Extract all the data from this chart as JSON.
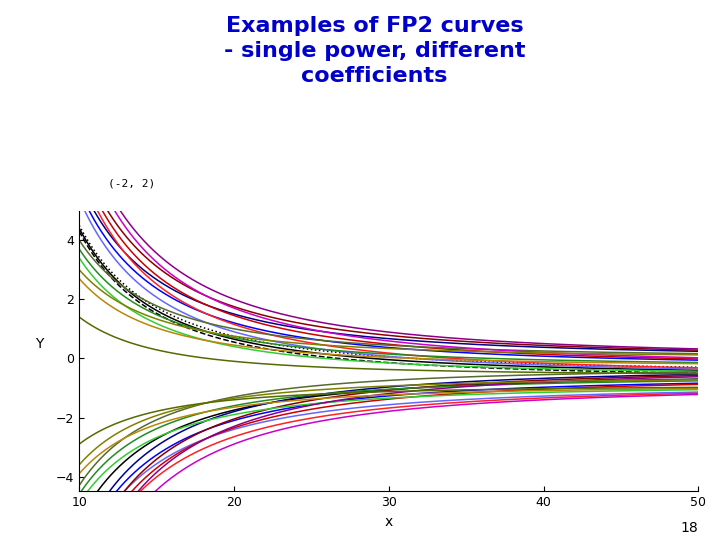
{
  "title": "Examples of FP2 curves\n- single power, different\ncoefficients",
  "title_color": "#0000CC",
  "title_fontsize": 16,
  "xlabel": "x",
  "ylabel": "Y",
  "annotation": "(-2, 2)",
  "xlim": [
    10,
    50
  ],
  "ylim": [
    -4.5,
    5.0
  ],
  "xticks": [
    10,
    20,
    30,
    40,
    50
  ],
  "yticks": [
    -4,
    -2,
    0,
    2,
    4
  ],
  "page_number": "18",
  "power": -2,
  "curves": [
    {
      "beta0": -0.5,
      "beta1": 500,
      "color": "#000000",
      "linestyle": "dotted"
    },
    {
      "beta0": -0.6,
      "beta1": 500,
      "color": "#000000",
      "linestyle": "solid"
    },
    {
      "beta0": -0.7,
      "beta1": 500,
      "color": "#000000",
      "linestyle": "dashed"
    },
    {
      "beta0": -0.5,
      "beta1": -500,
      "color": "#000000",
      "linestyle": "solid"
    },
    {
      "beta0": 0.0,
      "beta1": 600,
      "color": "#00008B",
      "linestyle": "solid"
    },
    {
      "beta0": -0.3,
      "beta1": 600,
      "color": "#0000FF",
      "linestyle": "solid"
    },
    {
      "beta0": -0.6,
      "beta1": 600,
      "color": "#6666FF",
      "linestyle": "solid"
    },
    {
      "beta0": -0.3,
      "beta1": -600,
      "color": "#00008B",
      "linestyle": "solid"
    },
    {
      "beta0": -0.6,
      "beta1": -600,
      "color": "#0000FF",
      "linestyle": "solid"
    },
    {
      "beta0": -0.9,
      "beta1": -600,
      "color": "#6666FF",
      "linestyle": "solid"
    },
    {
      "beta0": 0.0,
      "beta1": 700,
      "color": "#8B0000",
      "linestyle": "solid"
    },
    {
      "beta0": -0.3,
      "beta1": 700,
      "color": "#CC0000",
      "linestyle": "solid"
    },
    {
      "beta0": -0.6,
      "beta1": 700,
      "color": "#FF2222",
      "linestyle": "solid"
    },
    {
      "beta0": -0.3,
      "beta1": -700,
      "color": "#8B0000",
      "linestyle": "solid"
    },
    {
      "beta0": -0.6,
      "beta1": -700,
      "color": "#CC0000",
      "linestyle": "solid"
    },
    {
      "beta0": -0.9,
      "beta1": -700,
      "color": "#FF2222",
      "linestyle": "solid"
    },
    {
      "beta0": 0.0,
      "beta1": 400,
      "color": "#556B2F",
      "linestyle": "solid"
    },
    {
      "beta0": -0.3,
      "beta1": 400,
      "color": "#228B22",
      "linestyle": "solid"
    },
    {
      "beta0": -0.6,
      "beta1": 400,
      "color": "#32CD32",
      "linestyle": "solid"
    },
    {
      "beta0": -0.3,
      "beta1": -400,
      "color": "#556B2F",
      "linestyle": "solid"
    },
    {
      "beta0": -0.6,
      "beta1": -400,
      "color": "#228B22",
      "linestyle": "solid"
    },
    {
      "beta0": -0.9,
      "beta1": -400,
      "color": "#32CD32",
      "linestyle": "solid"
    },
    {
      "beta0": 0.0,
      "beta1": 800,
      "color": "#8B008B",
      "linestyle": "solid"
    },
    {
      "beta0": -0.3,
      "beta1": 800,
      "color": "#CC00CC",
      "linestyle": "solid"
    },
    {
      "beta0": -0.3,
      "beta1": -800,
      "color": "#8B008B",
      "linestyle": "solid"
    },
    {
      "beta0": -0.9,
      "beta1": -800,
      "color": "#CC00CC",
      "linestyle": "solid"
    },
    {
      "beta0": 0.0,
      "beta1": 300,
      "color": "#808000",
      "linestyle": "solid"
    },
    {
      "beta0": -0.3,
      "beta1": 300,
      "color": "#B8860B",
      "linestyle": "solid"
    },
    {
      "beta0": -0.6,
      "beta1": -300,
      "color": "#808000",
      "linestyle": "solid"
    },
    {
      "beta0": -0.9,
      "beta1": -300,
      "color": "#B8860B",
      "linestyle": "solid"
    },
    {
      "beta0": -0.6,
      "beta1": 200,
      "color": "#556B00",
      "linestyle": "solid"
    },
    {
      "beta0": -0.9,
      "beta1": -200,
      "color": "#556B00",
      "linestyle": "solid"
    }
  ]
}
